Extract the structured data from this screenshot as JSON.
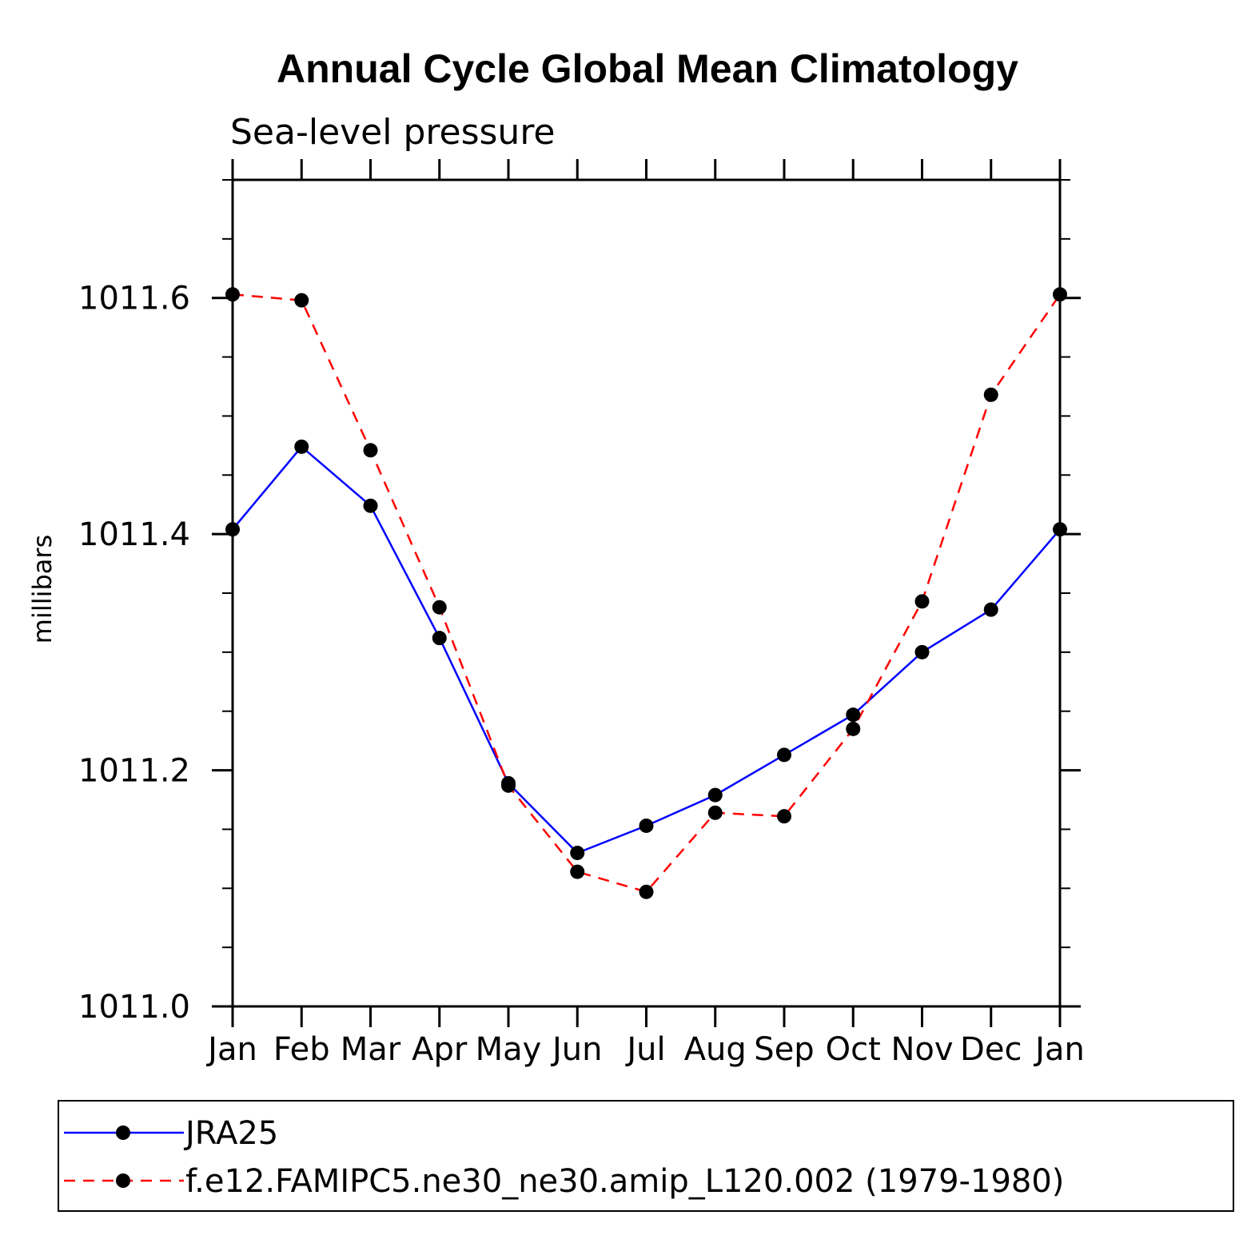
{
  "chart_data": {
    "type": "line",
    "title": "Annual Cycle Global Mean Climatology",
    "subtitle": "Sea-level pressure",
    "xlabel": "",
    "ylabel": "millibars",
    "categories": [
      "Jan",
      "Feb",
      "Mar",
      "Apr",
      "May",
      "Jun",
      "Jul",
      "Aug",
      "Sep",
      "Oct",
      "Nov",
      "Dec",
      "Jan"
    ],
    "ylim": [
      1011.0,
      1011.7
    ],
    "yticks": [
      1011.0,
      1011.2,
      1011.4,
      1011.6
    ],
    "ytick_labels": [
      "1011.0",
      "1011.2",
      "1011.4",
      "1011.6"
    ],
    "y_minor_step": 0.05,
    "grid": false,
    "legend_position": "bottom",
    "series": [
      {
        "name": "JRA25",
        "color": "#0000ff",
        "line_style": "solid",
        "marker": "filled-circle",
        "values": [
          1011.404,
          1011.474,
          1011.424,
          1011.312,
          1011.189,
          1011.13,
          1011.153,
          1011.179,
          1011.213,
          1011.247,
          1011.3,
          1011.336,
          1011.404
        ]
      },
      {
        "name": "f.e12.FAMIPC5.ne30_ne30.amip_L120.002 (1979-1980)",
        "color": "#ff0000",
        "line_style": "dashed",
        "marker": "filled-circle",
        "values": [
          1011.603,
          1011.598,
          1011.471,
          1011.338,
          1011.187,
          1011.114,
          1011.097,
          1011.164,
          1011.161,
          1011.235,
          1011.343,
          1011.518,
          1011.603
        ]
      }
    ]
  }
}
